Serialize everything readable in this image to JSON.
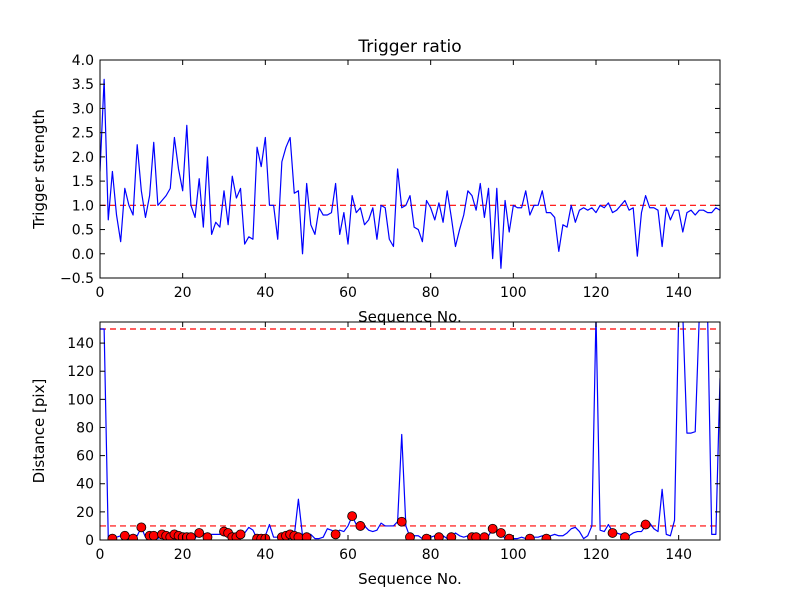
{
  "chart_data": [
    {
      "type": "line",
      "title": "Trigger ratio",
      "xlabel": "Sequence No.",
      "ylabel": "Trigger strength",
      "xlim": [
        0,
        150
      ],
      "ylim": [
        -0.5,
        4.0
      ],
      "xticks": [
        "0",
        "20",
        "40",
        "60",
        "80",
        "100",
        "120",
        "140"
      ],
      "xtick_values": [
        0,
        20,
        40,
        60,
        80,
        100,
        120,
        140
      ],
      "yticks": [
        "−0.5",
        "0.0",
        "0.5",
        "1.0",
        "1.5",
        "2.0",
        "2.5",
        "3.0",
        "3.5",
        "4.0"
      ],
      "ytick_values": [
        -0.5,
        0.0,
        0.5,
        1.0,
        1.5,
        2.0,
        2.5,
        3.0,
        3.5,
        4.0
      ],
      "grid": false,
      "series": [
        {
          "color": "#0000ff",
          "x_start": 0,
          "x_step": 1,
          "values": [
            1.7,
            3.6,
            0.7,
            1.7,
            0.8,
            0.25,
            1.35,
            1.0,
            0.8,
            2.25,
            1.3,
            0.75,
            1.2,
            2.3,
            1.0,
            1.1,
            1.2,
            1.35,
            2.4,
            1.75,
            1.3,
            2.65,
            1.0,
            0.75,
            1.55,
            0.55,
            2.0,
            0.4,
            0.65,
            0.55,
            1.3,
            0.6,
            1.6,
            1.15,
            1.35,
            0.2,
            0.35,
            0.3,
            2.2,
            1.8,
            2.4,
            1.0,
            1.0,
            0.3,
            1.9,
            2.2,
            2.4,
            1.25,
            1.3,
            0.0,
            1.45,
            0.6,
            0.4,
            0.95,
            0.8,
            0.8,
            0.85,
            1.45,
            0.4,
            0.85,
            0.2,
            1.2,
            0.85,
            0.95,
            0.6,
            0.7,
            0.95,
            0.3,
            1.0,
            0.95,
            0.3,
            0.15,
            1.75,
            0.95,
            1.0,
            1.2,
            0.55,
            0.5,
            0.25,
            1.1,
            0.95,
            0.7,
            1.05,
            0.65,
            1.3,
            0.75,
            0.15,
            0.5,
            0.8,
            1.3,
            1.2,
            0.9,
            1.45,
            0.75,
            1.35,
            -0.1,
            1.35,
            -0.3,
            1.1,
            0.45,
            1.0,
            0.95,
            0.95,
            1.3,
            0.8,
            1.0,
            1.0,
            1.3,
            0.85,
            0.85,
            0.75,
            0.05,
            0.6,
            0.55,
            1.0,
            0.65,
            0.9,
            0.95,
            0.9,
            0.95,
            0.85,
            1.0,
            0.95,
            1.05,
            0.85,
            0.9,
            1.0,
            1.1,
            0.9,
            0.95,
            -0.05,
            0.85,
            1.2,
            0.95,
            0.95,
            0.9,
            0.15,
            0.95,
            0.7,
            0.9,
            0.9,
            0.45,
            0.85,
            0.9,
            0.8,
            0.9,
            0.9,
            0.85,
            0.85,
            0.95,
            0.9
          ]
        }
      ],
      "reference_lines": [
        {
          "y": 1.0,
          "color": "#ff0000",
          "style": "dashed"
        }
      ]
    },
    {
      "type": "line",
      "title": "",
      "xlabel": "Sequence No.",
      "ylabel": "Distance [pix]",
      "xlim": [
        0,
        150
      ],
      "ylim": [
        0,
        155
      ],
      "xticks": [
        "0",
        "20",
        "40",
        "60",
        "80",
        "100",
        "120",
        "140"
      ],
      "xtick_values": [
        0,
        20,
        40,
        60,
        80,
        100,
        120,
        140
      ],
      "yticks": [
        "0",
        "20",
        "40",
        "60",
        "80",
        "100",
        "120",
        "140"
      ],
      "ytick_values": [
        0,
        20,
        40,
        60,
        80,
        100,
        120,
        140
      ],
      "grid": false,
      "series": [
        {
          "color": "#0000ff",
          "x_start": 0,
          "x_step": 1,
          "values": [
            150,
            150,
            1,
            1,
            2,
            3,
            3,
            1,
            4,
            3,
            9,
            2,
            3,
            3,
            1,
            4,
            4,
            2,
            5,
            3,
            2,
            2,
            2,
            1,
            6,
            5,
            3,
            4,
            4,
            4,
            7,
            3,
            2,
            3,
            5,
            5,
            9,
            7,
            1,
            2,
            3,
            11,
            2,
            2,
            3,
            4,
            5,
            3,
            29,
            3,
            4,
            4,
            1,
            1,
            2,
            8,
            7,
            5,
            7,
            6,
            10,
            17,
            11,
            10,
            10,
            7,
            6,
            7,
            12,
            10,
            10,
            10,
            13,
            75,
            10,
            2,
            3,
            3,
            1,
            1,
            2,
            3,
            2,
            3,
            1,
            2,
            5,
            3,
            2,
            3,
            2,
            2,
            1,
            1,
            3,
            8,
            6,
            5,
            1,
            1,
            1,
            1,
            2,
            1,
            1,
            2,
            2,
            3,
            1,
            3,
            4,
            3,
            3,
            5,
            8,
            9,
            6,
            1,
            3,
            10,
            160,
            7,
            6,
            11,
            6,
            5,
            4,
            5,
            3,
            5,
            6,
            6,
            10,
            12,
            8,
            6,
            36,
            4,
            3,
            14,
            160,
            160,
            76,
            76,
            77,
            160,
            160,
            160,
            4,
            4,
            115
          ]
        }
      ],
      "markers": {
        "color": "#ff0000",
        "points": [
          {
            "x": 3,
            "y": 1
          },
          {
            "x": 6,
            "y": 3
          },
          {
            "x": 8,
            "y": 1
          },
          {
            "x": 10,
            "y": 9
          },
          {
            "x": 12,
            "y": 3
          },
          {
            "x": 13,
            "y": 3
          },
          {
            "x": 15,
            "y": 4
          },
          {
            "x": 16,
            "y": 3
          },
          {
            "x": 17,
            "y": 2
          },
          {
            "x": 18,
            "y": 4
          },
          {
            "x": 19,
            "y": 3
          },
          {
            "x": 20,
            "y": 2
          },
          {
            "x": 21,
            "y": 2
          },
          {
            "x": 22,
            "y": 2
          },
          {
            "x": 24,
            "y": 5
          },
          {
            "x": 26,
            "y": 2
          },
          {
            "x": 30,
            "y": 6
          },
          {
            "x": 31,
            "y": 5
          },
          {
            "x": 32,
            "y": 2
          },
          {
            "x": 33,
            "y": 2
          },
          {
            "x": 34,
            "y": 4
          },
          {
            "x": 38,
            "y": 1
          },
          {
            "x": 39,
            "y": 1
          },
          {
            "x": 40,
            "y": 1
          },
          {
            "x": 44,
            "y": 2
          },
          {
            "x": 45,
            "y": 3
          },
          {
            "x": 46,
            "y": 4
          },
          {
            "x": 47,
            "y": 3
          },
          {
            "x": 48,
            "y": 2
          },
          {
            "x": 50,
            "y": 2
          },
          {
            "x": 57,
            "y": 4
          },
          {
            "x": 61,
            "y": 17
          },
          {
            "x": 63,
            "y": 10
          },
          {
            "x": 73,
            "y": 13
          },
          {
            "x": 75,
            "y": 2
          },
          {
            "x": 79,
            "y": 1
          },
          {
            "x": 82,
            "y": 2
          },
          {
            "x": 85,
            "y": 2
          },
          {
            "x": 90,
            "y": 2
          },
          {
            "x": 91,
            "y": 2
          },
          {
            "x": 93,
            "y": 2
          },
          {
            "x": 95,
            "y": 8
          },
          {
            "x": 97,
            "y": 5
          },
          {
            "x": 99,
            "y": 1
          },
          {
            "x": 104,
            "y": 1
          },
          {
            "x": 108,
            "y": 1
          },
          {
            "x": 124,
            "y": 5
          },
          {
            "x": 127,
            "y": 2
          },
          {
            "x": 132,
            "y": 11
          }
        ]
      },
      "reference_lines": [
        {
          "y": 150,
          "color": "#ff0000",
          "style": "dashed"
        },
        {
          "y": 10,
          "color": "#ff0000",
          "style": "dashed"
        }
      ]
    }
  ]
}
